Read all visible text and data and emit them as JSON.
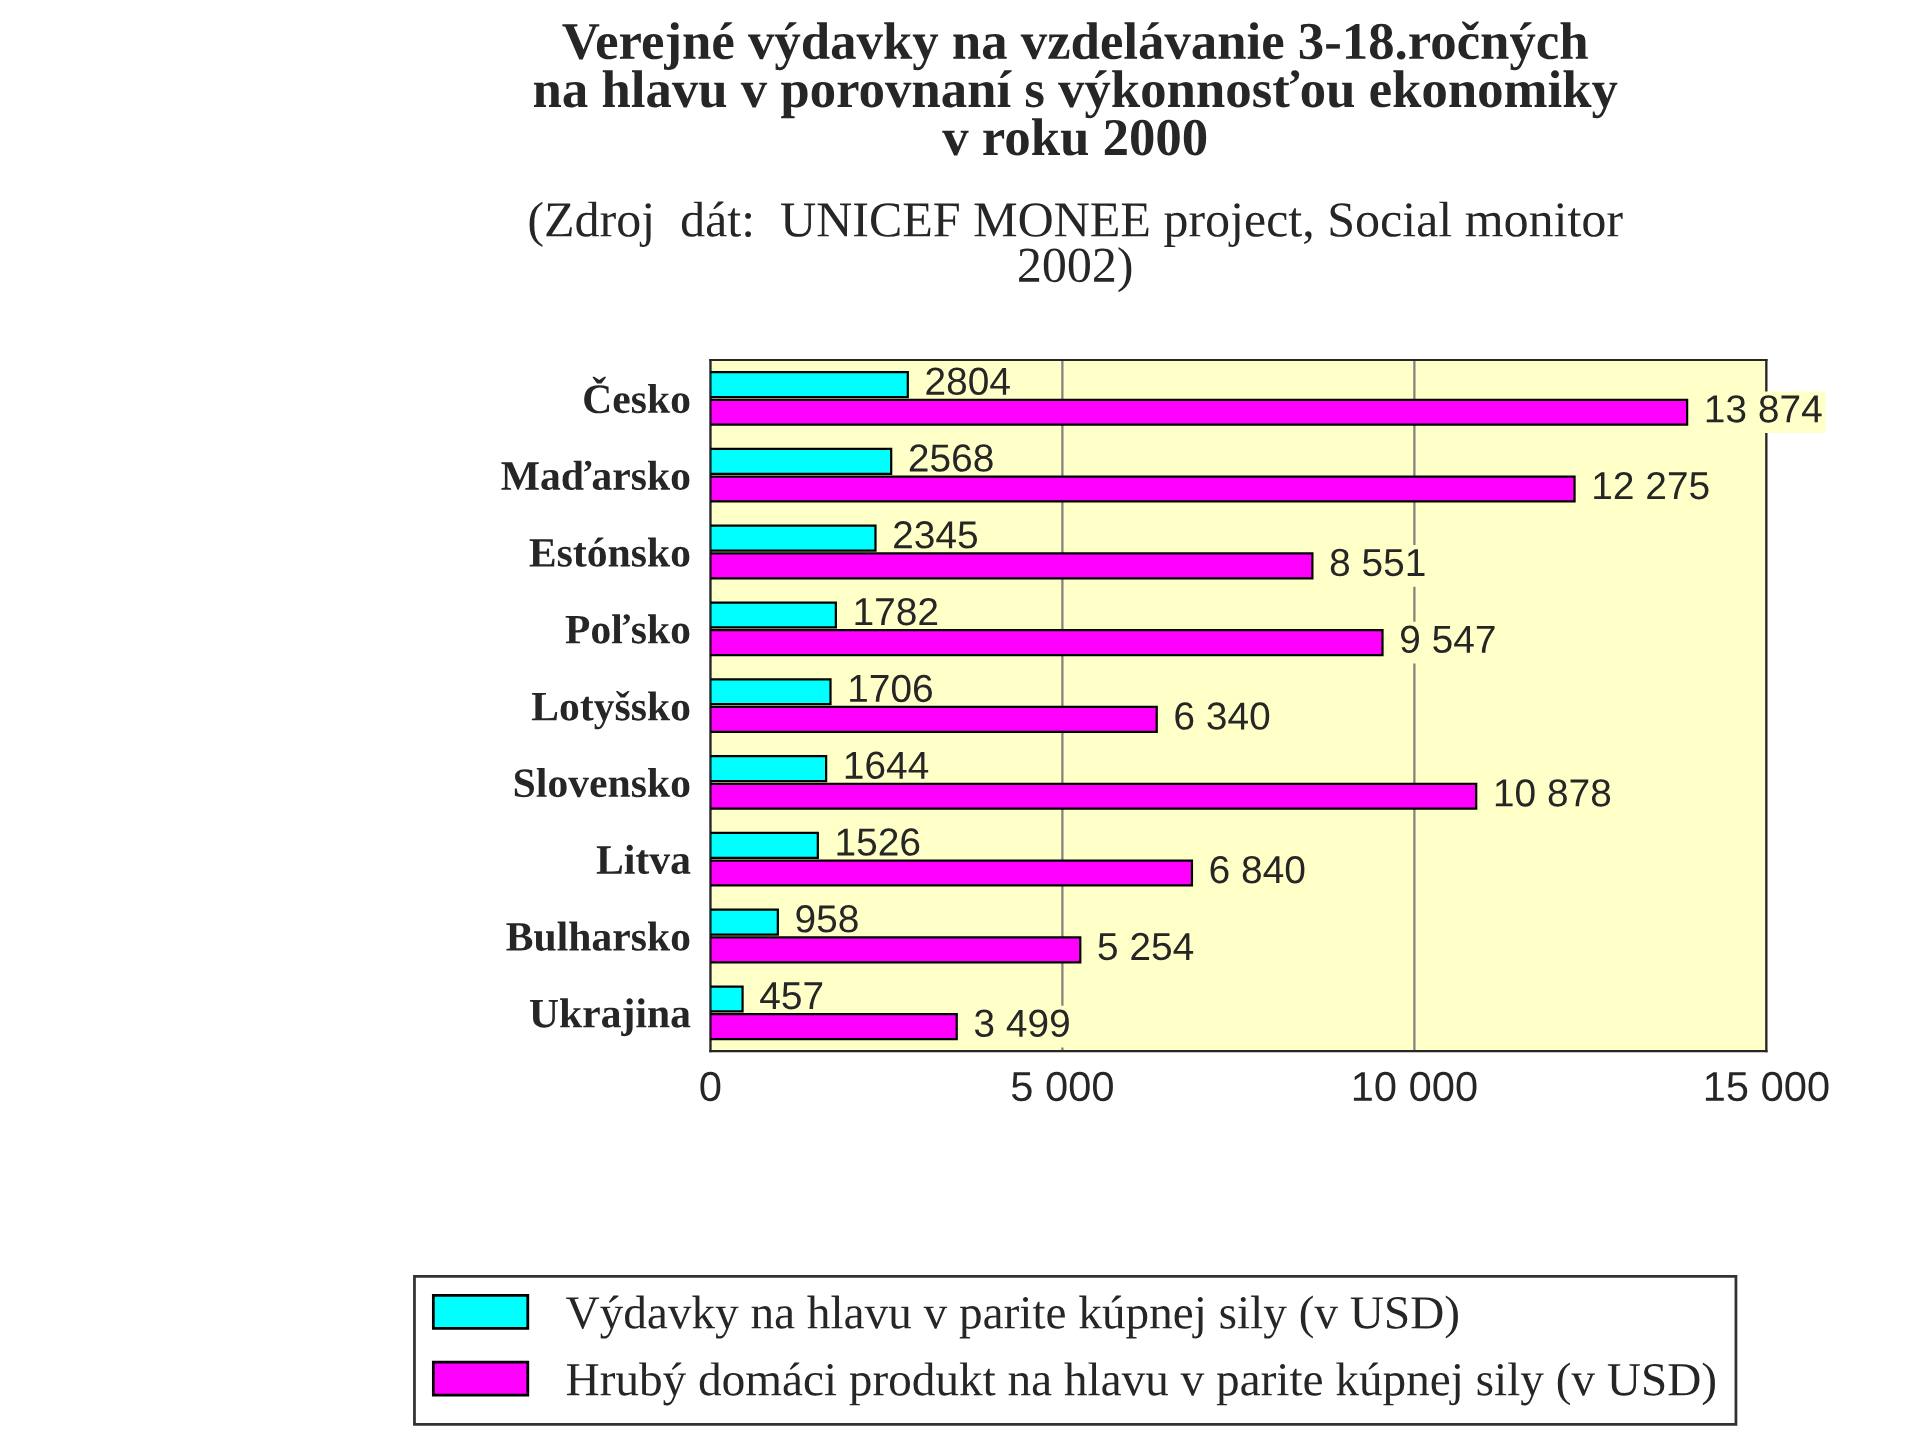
{
  "chart_data": {
    "type": "bar",
    "orientation": "horizontal",
    "title": "Verejné výdavky na vzdelávanie 3-18.ročných\nna hlavu v porovnaní s výkonnosťou ekonomiky\nv roku 2000",
    "subtitle": "(Zdroj  dát:  UNICEF MONEE project, Social monitor\n2002)",
    "categories": [
      "Česko",
      "Maďarsko",
      "Estónsko",
      "Poľsko",
      "Lotyšsko",
      "Slovensko",
      "Litva",
      "Bulharsko",
      "Ukrajina"
    ],
    "series": [
      {
        "name": "Výdavky na hlavu v parite kúpnej sily (v USD)",
        "color": "#00ffff",
        "values": [
          2804,
          2568,
          2345,
          1782,
          1706,
          1644,
          1526,
          958,
          457
        ],
        "value_labels": [
          "2804",
          "2568",
          "2345",
          "1782",
          "1706",
          "1644",
          "1526",
          "958",
          "457"
        ]
      },
      {
        "name": "Hrubý domáci produkt na hlavu v parite kúpnej sily (v USD)",
        "color": "#ff00ff",
        "values": [
          13874,
          12275,
          8551,
          9547,
          6340,
          10878,
          6840,
          5254,
          3499
        ],
        "value_labels": [
          "13 874",
          "12 275",
          "8 551",
          "9 547",
          "6 340",
          "10 878",
          "6 840",
          "5 254",
          "3 499"
        ]
      }
    ],
    "xlim": [
      0,
      15000
    ],
    "xticks": [
      {
        "value": 0,
        "label": "0"
      },
      {
        "value": 5000,
        "label": "5 000"
      },
      {
        "value": 10000,
        "label": "10 000"
      },
      {
        "value": 15000,
        "label": "15 000"
      }
    ],
    "grid": "x",
    "legend": "bottom"
  }
}
